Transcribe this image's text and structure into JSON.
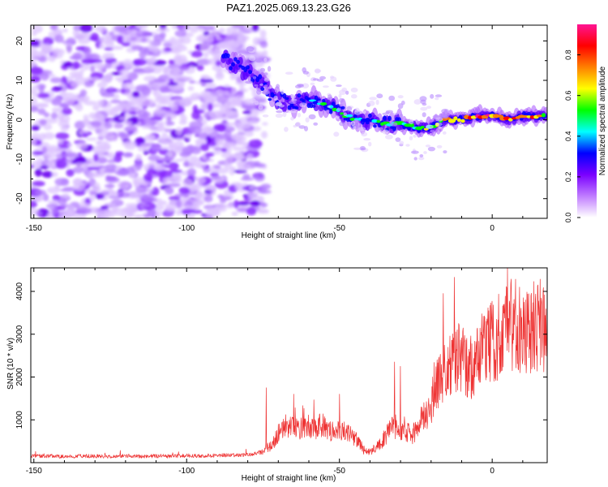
{
  "figure": {
    "title": "PAZ1.2025.069.13.23.G26"
  },
  "colorbar": {
    "label": "Normalized spectral amplitude",
    "ticks": [
      "0.0",
      "0.2",
      "0.4",
      "0.6",
      "0.8"
    ],
    "range": [
      0,
      0.95
    ],
    "colors": [
      "#ffffff",
      "#c07cff",
      "#7a00ff",
      "#0000ff",
      "#00ffff",
      "#00ff00",
      "#ffff00",
      "#ff8000",
      "#ff0000",
      "#ff1493"
    ]
  },
  "chart_data": [
    {
      "type": "heatmap",
      "title": "PAZ1.2025.069.13.23.G26",
      "xlabel": "Height of straight line (km)",
      "ylabel": "Frequency (Hz)",
      "xlim": [
        -151,
        18
      ],
      "ylim": [
        -25,
        24
      ],
      "xticks": [
        -150,
        -100,
        -50,
        0
      ],
      "yticks": [
        -20,
        -10,
        0,
        10,
        20
      ],
      "xtick_labels": [
        "-150",
        "-100",
        "-50",
        "0"
      ],
      "ytick_labels": [
        "-20",
        "-10",
        "0",
        "10",
        "20"
      ],
      "colorscale": "rainbow",
      "noise_region_x": [
        -151,
        -78
      ],
      "ridge": {
        "x": [
          -88,
          -82,
          -76,
          -72,
          -66,
          -60,
          -55,
          -50,
          -45,
          -40,
          -35,
          -30,
          -25,
          -20,
          -15,
          -10,
          -5,
          0,
          5,
          10,
          18
        ],
        "y": [
          16,
          13,
          10,
          6,
          4,
          5,
          4,
          2,
          0,
          0,
          -1,
          -1,
          -2,
          -2,
          0,
          0,
          1,
          1,
          0,
          1,
          1
        ],
        "amplitude": [
          0.3,
          0.35,
          0.3,
          0.35,
          0.45,
          0.4,
          0.5,
          0.55,
          0.45,
          0.4,
          0.5,
          0.55,
          0.6,
          0.55,
          0.75,
          0.8,
          0.85,
          0.9,
          0.85,
          0.8,
          0.7
        ]
      }
    },
    {
      "type": "line",
      "xlabel": "Height of straight line (km)",
      "ylabel": "SNR (10 * v/v)",
      "xlim": [
        -151,
        18
      ],
      "ylim": [
        0,
        4550
      ],
      "xticks": [
        -150,
        -100,
        -50,
        0
      ],
      "yticks": [
        1000,
        2000,
        3000,
        4000
      ],
      "xtick_labels": [
        "-150",
        "-100",
        "-50",
        "0"
      ],
      "ytick_labels": [
        "1000",
        "2000",
        "3000",
        "4000"
      ],
      "color": "#ee3333",
      "series": [
        {
          "x": [
            -151,
            -145,
            -140,
            -135,
            -130,
            -125,
            -120,
            -115,
            -110,
            -105,
            -100,
            -95,
            -90,
            -85,
            -80,
            -78,
            -76,
            -74,
            -72,
            -70,
            -68,
            -66,
            -64,
            -62,
            -60,
            -58,
            -56,
            -54,
            -52,
            -50,
            -48,
            -46,
            -44,
            -42,
            -40,
            -38,
            -36,
            -34,
            -32,
            -30,
            -28,
            -26,
            -24,
            -22,
            -20,
            -18,
            -16,
            -14,
            -12,
            -10,
            -8,
            -6,
            -4,
            -2,
            0,
            2,
            4,
            6,
            8,
            10,
            12,
            14,
            16,
            18
          ],
          "y": [
            150,
            160,
            140,
            155,
            150,
            145,
            160,
            150,
            155,
            150,
            165,
            160,
            170,
            175,
            180,
            200,
            250,
            320,
            420,
            700,
            820,
            900,
            780,
            850,
            900,
            780,
            900,
            750,
            700,
            800,
            750,
            650,
            500,
            300,
            250,
            350,
            500,
            700,
            850,
            800,
            700,
            650,
            900,
            1100,
            1400,
            1800,
            2100,
            2250,
            2300,
            2450,
            2150,
            2300,
            2600,
            2800,
            2900,
            2750,
            3100,
            3300,
            3200,
            3050,
            3000,
            3300,
            3150,
            3000
          ],
          "peaks": [
            {
              "x": -74,
              "y": 1750
            },
            {
              "x": -65,
              "y": 1600
            },
            {
              "x": -50,
              "y": 1600
            },
            {
              "x": -32,
              "y": 2350
            },
            {
              "x": -30,
              "y": 2250
            },
            {
              "x": -16,
              "y": 3950
            },
            {
              "x": -11,
              "y": 3250
            },
            {
              "x": -2,
              "y": 3300
            },
            {
              "x": 5,
              "y": 4550
            },
            {
              "x": 9,
              "y": 4100
            },
            {
              "x": 15,
              "y": 4150
            }
          ]
        }
      ]
    }
  ]
}
